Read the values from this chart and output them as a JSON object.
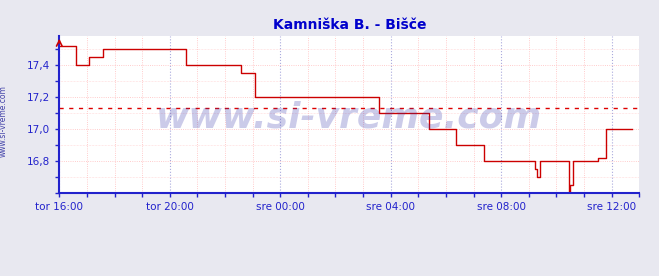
{
  "title": "Kamniška B. - Bišče",
  "title_color": "#0000cc",
  "title_fontsize": 10,
  "background_color": "#e8e8f0",
  "plot_bg_color": "#ffffff",
  "ylabel_color": "#0000cc",
  "xlabel_color": "#0000cc",
  "axis_color": "#2222cc",
  "grid_major_x_color": "#aaaadd",
  "grid_minor_color": "#ffbbbb",
  "ylim": [
    16.62,
    17.58
  ],
  "yticks": [
    16.8,
    17.0,
    17.2,
    17.4
  ],
  "ytick_labels": [
    "16,8",
    "17,0",
    "17,2",
    "17,4"
  ],
  "xtick_labels": [
    "tor 16:00",
    "tor 20:00",
    "sre 00:00",
    "sre 04:00",
    "sre 08:00",
    "sre 12:00"
  ],
  "avg_line_y": 17.13,
  "avg_line_color": "#dd0000",
  "watermark": "www.si-vreme.com",
  "watermark_color": "#3333aa",
  "watermark_alpha": 0.25,
  "watermark_fontsize": 26,
  "side_label": "www.si-vreme.com",
  "side_label_color": "#4444aa",
  "legend_temperatura_color": "#cc0000",
  "legend_pretok_color": "#00aa00",
  "temp_line_color": "#cc0000",
  "xrange": [
    0,
    21
  ],
  "tx": [
    0.0,
    0.5,
    0.6,
    1.0,
    1.08,
    1.5,
    1.58,
    4.5,
    4.58,
    6.5,
    6.58,
    7.0,
    7.08,
    8.5,
    8.58,
    9.5,
    9.58,
    11.5,
    11.58,
    12.0,
    12.08,
    13.3,
    13.38,
    14.3,
    14.38,
    15.3,
    15.38,
    17.2,
    17.22,
    17.3,
    17.4,
    18.45,
    18.47,
    18.5,
    18.6,
    19.5,
    19.52,
    19.7,
    19.8,
    20.75
  ],
  "ty": [
    17.52,
    17.52,
    17.4,
    17.4,
    17.45,
    17.45,
    17.5,
    17.5,
    17.4,
    17.4,
    17.35,
    17.35,
    17.2,
    17.2,
    17.2,
    17.2,
    17.2,
    17.2,
    17.1,
    17.1,
    17.1,
    17.1,
    17.0,
    17.0,
    16.9,
    16.9,
    16.8,
    16.8,
    16.75,
    16.7,
    16.8,
    16.8,
    16.6,
    16.65,
    16.8,
    16.8,
    16.82,
    16.82,
    17.0,
    17.0
  ]
}
